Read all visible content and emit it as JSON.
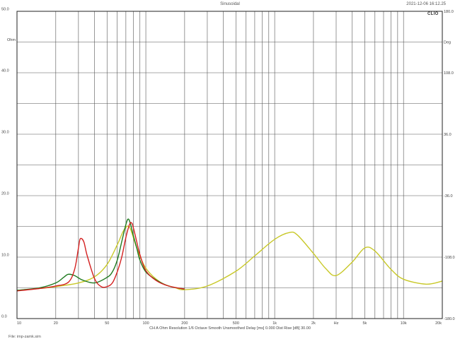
{
  "header": {
    "title": "Sinusoidal",
    "timestamp": "2021-12-06 16:12.25",
    "logo": "CLIO"
  },
  "footer": {
    "file": "File: imp-zamk.sim"
  },
  "chart_data": {
    "type": "line",
    "xscale": "log",
    "xlim": [
      10,
      20000
    ],
    "ylim": [
      0,
      50
    ],
    "y2lim": [
      -180,
      180
    ],
    "grid": true,
    "x_tick_labels": [
      {
        "v": 10,
        "t": "10"
      },
      {
        "v": 20,
        "t": "20"
      },
      {
        "v": 50,
        "t": "50"
      },
      {
        "v": 100,
        "t": "100"
      },
      {
        "v": 200,
        "t": "200"
      },
      {
        "v": 500,
        "t": "500"
      },
      {
        "v": 1000,
        "t": "1k"
      },
      {
        "v": 2000,
        "t": "2k"
      },
      {
        "v": 5000,
        "t": "5k"
      },
      {
        "v": 10000,
        "t": "10k"
      },
      {
        "v": 20000,
        "t": "20k"
      }
    ],
    "x_unit_label": {
      "v": 3000,
      "t": "Hz"
    },
    "y_tick_labels": [
      "0.0",
      "10.0",
      "20.0",
      "30.0",
      "40.0",
      "50.0"
    ],
    "y_unit_label": "Ohm",
    "y2_tick_labels": [
      {
        "v": 180,
        "t": "180.0"
      },
      {
        "v": 108,
        "t": "108.0"
      },
      {
        "v": 36,
        "t": "36.0"
      },
      {
        "v": -36,
        "t": "-36.0"
      },
      {
        "v": -108,
        "t": "-108.0"
      },
      {
        "v": -180,
        "t": "-180.0"
      }
    ],
    "y2_unit_label": "Deg",
    "info_line": "CH A   Ohm   Resolution 1/6 Octave   Smooth Unsmoothed   Delay [ms] 0.000   Dist Rise [dB] 30.00",
    "series": [
      {
        "color": "#c8c828",
        "x": [
          10,
          15,
          20,
          30,
          40,
          50,
          60,
          68,
          75,
          85,
          100,
          130,
          170,
          200,
          300,
          500,
          700,
          1000,
          1300,
          1500,
          2000,
          2500,
          3000,
          4000,
          5000,
          6000,
          8000,
          10000,
          15000,
          20000
        ],
        "y": [
          4.6,
          4.9,
          5.2,
          5.8,
          6.8,
          8.8,
          12.0,
          14.5,
          14.8,
          11.5,
          8.2,
          5.9,
          5.0,
          4.7,
          5.3,
          7.7,
          10.2,
          12.9,
          14.0,
          13.6,
          10.6,
          8.1,
          7.0,
          9.2,
          11.5,
          11.0,
          8.0,
          6.4,
          5.6,
          6.1
        ]
      },
      {
        "color": "#1f7a1f",
        "x": [
          10,
          15,
          20,
          23,
          25,
          28,
          32,
          40,
          50,
          55,
          60,
          65,
          70,
          73,
          76,
          80,
          85,
          90,
          100,
          120,
          150,
          200
        ],
        "y": [
          4.6,
          5.0,
          5.8,
          6.7,
          7.2,
          7.0,
          6.3,
          5.8,
          6.7,
          7.6,
          9.5,
          12.5,
          15.3,
          16.2,
          15.4,
          13.5,
          11.5,
          9.5,
          7.6,
          6.3,
          5.3,
          4.8
        ]
      },
      {
        "color": "#d42020",
        "x": [
          10,
          15,
          20,
          25,
          28,
          30,
          31,
          33,
          35,
          40,
          45,
          50,
          55,
          60,
          65,
          70,
          75,
          78,
          80,
          85,
          90,
          100,
          120,
          150,
          200
        ],
        "y": [
          4.5,
          4.9,
          5.3,
          5.9,
          8.0,
          11.5,
          13.0,
          12.5,
          10.3,
          6.5,
          5.2,
          5.2,
          5.8,
          7.6,
          10.0,
          13.2,
          15.4,
          15.5,
          14.8,
          12.5,
          10.4,
          7.8,
          6.2,
          5.3,
          4.8
        ]
      }
    ]
  }
}
